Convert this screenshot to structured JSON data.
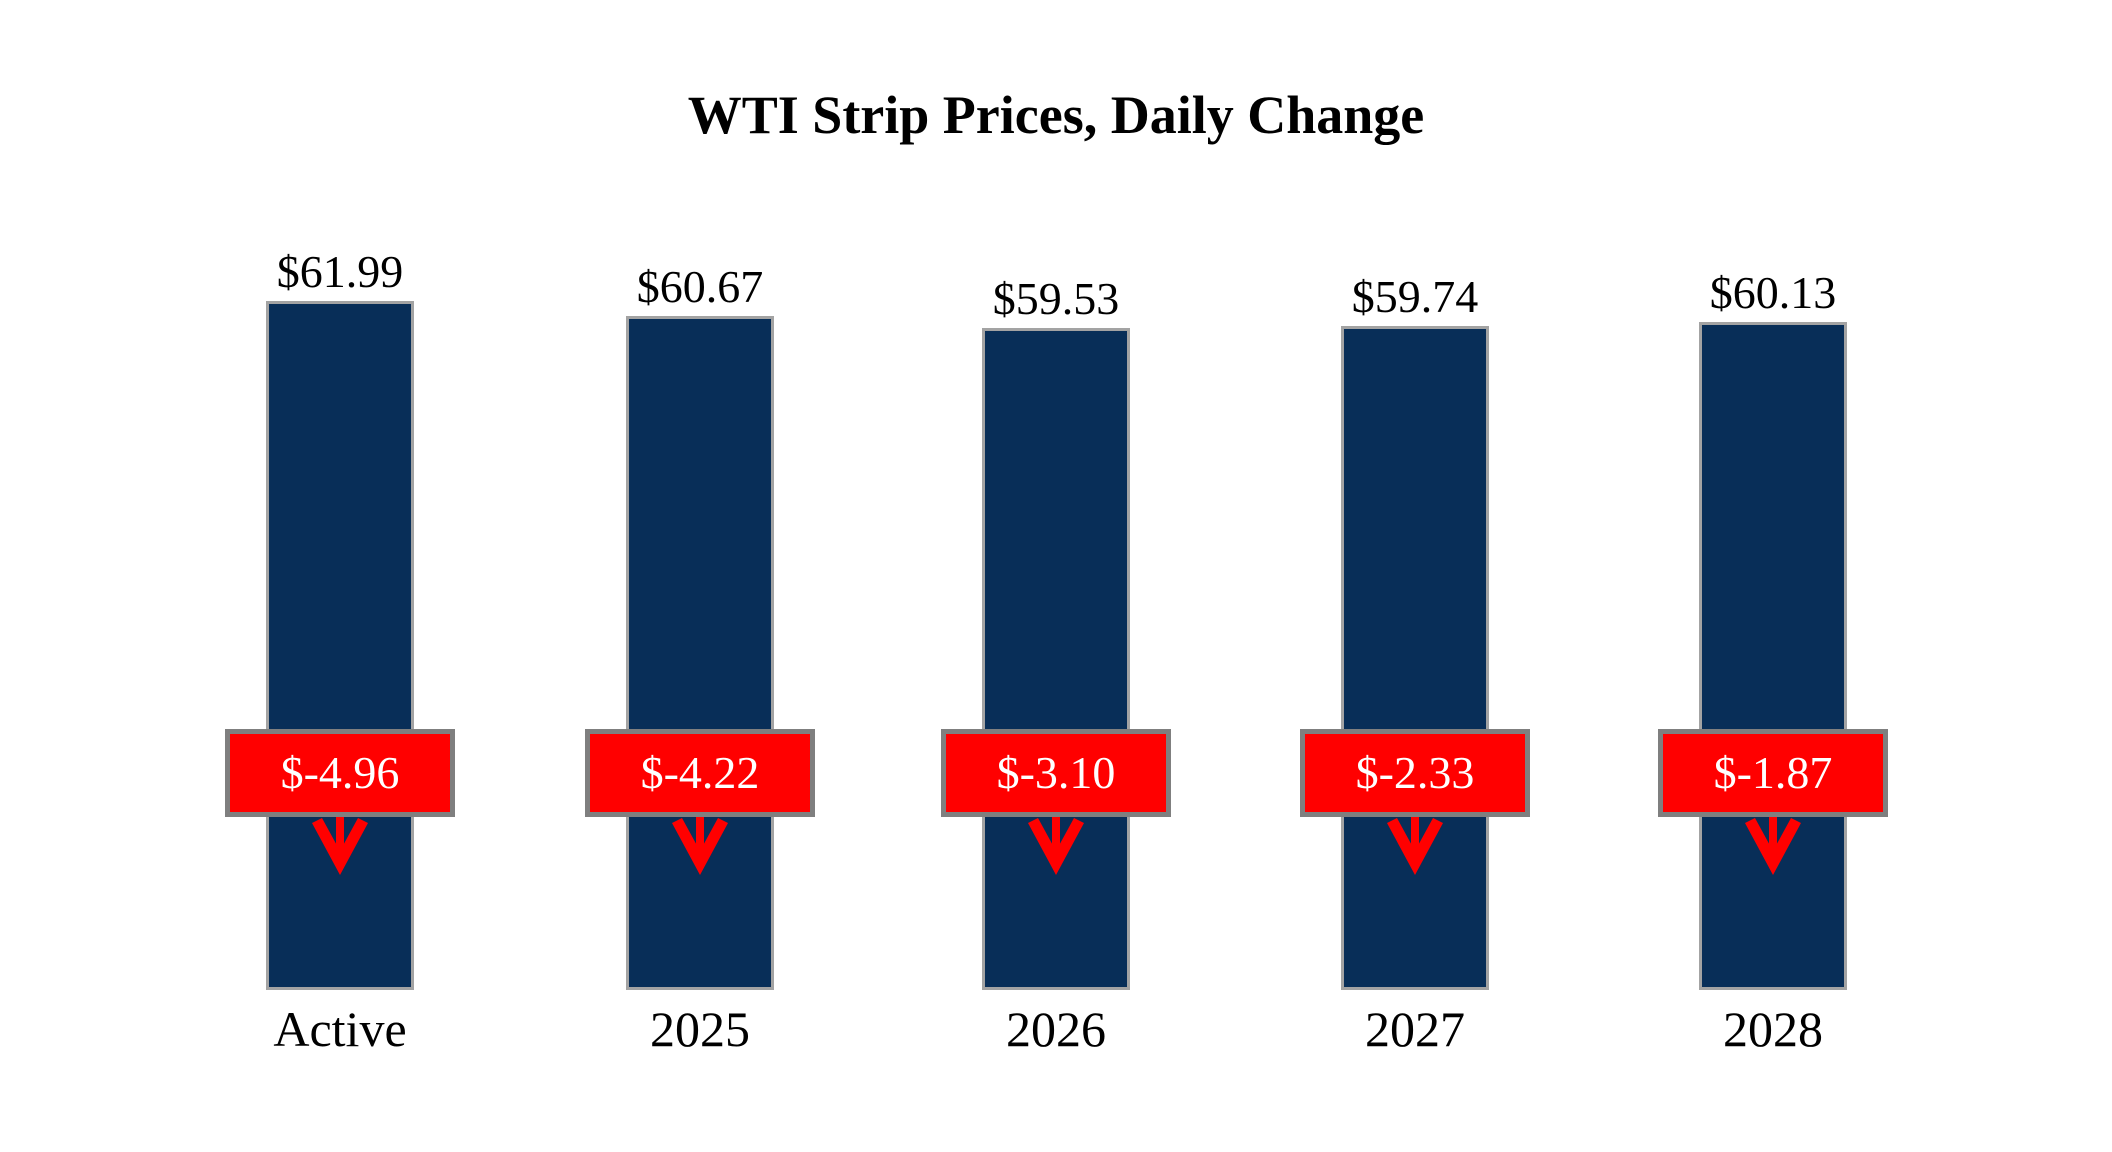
{
  "chart_data": {
    "type": "bar",
    "title": "WTI Strip Prices, Daily Change",
    "categories": [
      "Active",
      "2025",
      "2026",
      "2027",
      "2028"
    ],
    "series": [
      {
        "name": "WTI Strip Price",
        "values": [
          61.99,
          60.67,
          59.53,
          59.74,
          60.13
        ],
        "labels": [
          "$61.99",
          "$60.67",
          "$59.53",
          "$59.74",
          "$60.13"
        ]
      },
      {
        "name": "Daily Change",
        "values": [
          -4.96,
          -4.22,
          -3.1,
          -2.33,
          -1.87
        ],
        "labels": [
          "$-4.96",
          "$-4.22",
          "$-3.10",
          "$-2.33",
          "$-1.87"
        ]
      }
    ],
    "ylim": [
      0,
      62
    ],
    "xlabel": "",
    "ylabel": "",
    "grid": false,
    "axes_hidden": true,
    "legend_position": "none",
    "colors": {
      "bar_fill": "#082E58",
      "bar_border": "#A3A3A3",
      "change_badge_fill": "#FF0000",
      "change_badge_border": "#7F7F7F",
      "change_text": "#FFFFFF",
      "arrow": "#FF0000",
      "label_text": "#000000",
      "background": "#FFFFFF"
    }
  }
}
